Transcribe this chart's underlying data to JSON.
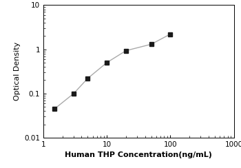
{
  "x": [
    1.5,
    3.0,
    5.0,
    10.0,
    20.0,
    50.0,
    100.0
  ],
  "y": [
    0.045,
    0.1,
    0.22,
    0.5,
    0.93,
    1.3,
    2.2
  ],
  "xlim": [
    1,
    1000
  ],
  "ylim": [
    0.01,
    10
  ],
  "xlabel": "Human THP Concentration(ng/mL)",
  "ylabel": "Optical Density",
  "marker": "s",
  "marker_color": "#1a1a1a",
  "line_color": "#aaaaaa",
  "marker_size": 4,
  "line_width": 1.0,
  "xlabel_fontsize": 8,
  "ylabel_fontsize": 8,
  "tick_fontsize": 7.5,
  "background_color": "#ffffff",
  "xtick_labels": [
    "1",
    "10",
    "100",
    "1000"
  ],
  "xtick_vals": [
    1,
    10,
    100,
    1000
  ],
  "ytick_labels": [
    "0.01",
    "0.1",
    "1",
    "10"
  ],
  "ytick_vals": [
    0.01,
    0.1,
    1,
    10
  ]
}
